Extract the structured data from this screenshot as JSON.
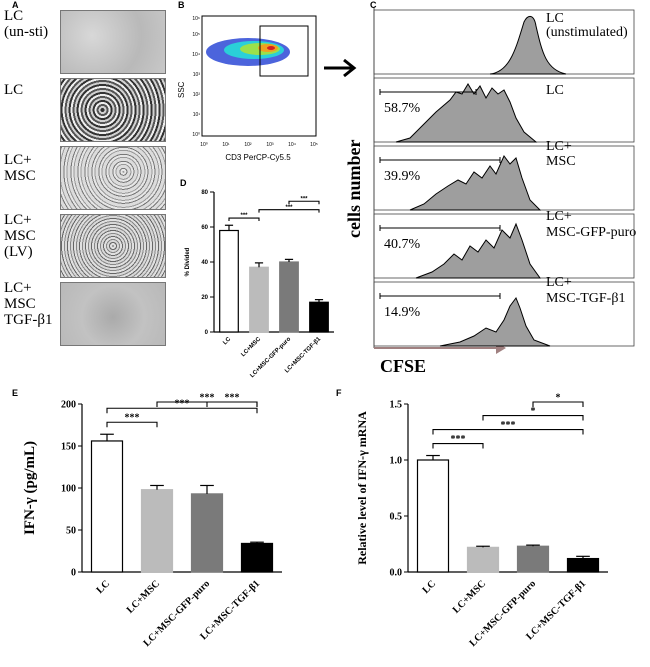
{
  "panels": {
    "a": "A",
    "b": "B",
    "c": "C",
    "d": "D",
    "e": "E",
    "f": "F"
  },
  "panel_a": {
    "rows": [
      {
        "lines": [
          "LC",
          "(un-sti)"
        ],
        "texture": "uniform"
      },
      {
        "lines": [
          "LC"
        ],
        "texture": "dense"
      },
      {
        "lines": [
          "LC+",
          "MSC"
        ],
        "texture": "medium"
      },
      {
        "lines": [
          "LC+",
          "MSC",
          "(LV)"
        ],
        "texture": "medium"
      },
      {
        "lines": [
          "LC+",
          "MSC",
          "TGF-β1"
        ],
        "texture": "sparse"
      }
    ]
  },
  "panel_b": {
    "xlabel": "CD3 PerCP-Cy5.5",
    "ylabel": "SSC",
    "xticks": [
      "10⁰",
      "10¹",
      "10²",
      "10³",
      "10⁴",
      "10⁵"
    ],
    "yticks": [
      "10⁰",
      "10¹",
      "10²",
      "10³",
      "10⁴",
      "10⁵",
      "10⁶"
    ]
  },
  "panel_c": {
    "ylabel": "cells number",
    "xlabel": "CFSE",
    "histograms": [
      {
        "lines": [
          "LC",
          "(unstimulated)"
        ],
        "percent": ""
      },
      {
        "lines": [
          "LC"
        ],
        "percent": "58.7%"
      },
      {
        "lines": [
          "LC+",
          "MSC"
        ],
        "percent": "39.9%"
      },
      {
        "lines": [
          "LC+",
          "MSC-GFP-puro"
        ],
        "percent": "40.7%"
      },
      {
        "lines": [
          "LC+",
          "MSC-TGF-β1"
        ],
        "percent": "14.9%"
      }
    ]
  },
  "chart_data": [
    {
      "id": "D",
      "type": "bar",
      "title": "",
      "ylabel": "% Divided",
      "xlabel": "",
      "categories": [
        "LC",
        "LC+MSC",
        "LC+MSC-GFP-puro",
        "LC+MSC-TGF-β1"
      ],
      "values": [
        58,
        37,
        40,
        17
      ],
      "errors": [
        3,
        2.5,
        1.5,
        1.5
      ],
      "ylim": [
        0,
        80
      ],
      "yticks": [
        0,
        20,
        40,
        60,
        80
      ],
      "colors": [
        "#ffffff",
        "#bbbbbb",
        "#7a7a7a",
        "#000000"
      ],
      "significance": [
        {
          "from": 0,
          "to": 1,
          "label": "***"
        },
        {
          "from": 1,
          "to": 3,
          "label": "***"
        },
        {
          "from": 2,
          "to": 3,
          "label": "***"
        }
      ]
    },
    {
      "id": "E",
      "type": "bar",
      "title": "",
      "ylabel": "IFN-γ (pg/mL)",
      "xlabel": "",
      "categories": [
        "LC",
        "LC+MSC",
        "LC+MSC-GFP-puro",
        "LC+MSC-TGF-β1"
      ],
      "values": [
        156,
        98,
        93,
        34
      ],
      "errors": [
        8,
        5,
        10,
        1.5
      ],
      "ylim": [
        0,
        200
      ],
      "yticks": [
        0,
        50,
        100,
        150,
        200
      ],
      "colors": [
        "#ffffff",
        "#bbbbbb",
        "#7a7a7a",
        "#000000"
      ],
      "significance": [
        {
          "from": 0,
          "to": 1,
          "label": "***"
        },
        {
          "from": 0,
          "to": 3,
          "label": "***"
        },
        {
          "from": 1,
          "to": 3,
          "label": "***"
        },
        {
          "from": 2,
          "to": 3,
          "label": "***"
        }
      ]
    },
    {
      "id": "F",
      "type": "bar",
      "title": "",
      "ylabel": "Relative level of IFN-γ mRNA",
      "xlabel": "",
      "categories": [
        "LC",
        "LC+MSC",
        "LC+MSC-GFP-puro",
        "LC+MSC-TGF-β1"
      ],
      "values": [
        1.0,
        0.22,
        0.23,
        0.12
      ],
      "errors": [
        0.04,
        0.01,
        0.01,
        0.02
      ],
      "ylim": [
        0,
        1.5
      ],
      "yticks": [
        "0.0",
        "0.5",
        "1.0",
        "1.5"
      ],
      "colors": [
        "#ffffff",
        "#bbbbbb",
        "#7a7a7a",
        "#000000"
      ],
      "significance": [
        {
          "from": 0,
          "to": 1,
          "label": "***"
        },
        {
          "from": 0,
          "to": 3,
          "label": "***"
        },
        {
          "from": 1,
          "to": 3,
          "label": "*"
        },
        {
          "from": 2,
          "to": 3,
          "label": "*"
        }
      ]
    }
  ]
}
